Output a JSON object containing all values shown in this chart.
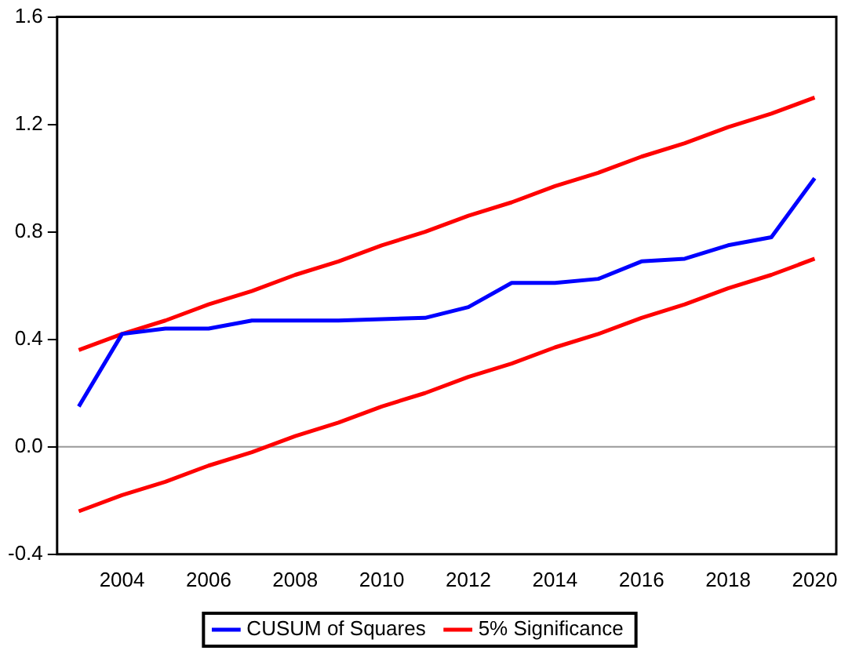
{
  "chart_data": {
    "type": "line",
    "x": [
      2003,
      2004,
      2005,
      2006,
      2007,
      2008,
      2009,
      2010,
      2011,
      2012,
      2013,
      2014,
      2015,
      2016,
      2017,
      2018,
      2019,
      2020
    ],
    "series": [
      {
        "name": "CUSUM of Squares",
        "color": "#0000ff",
        "values": [
          0.15,
          0.42,
          0.44,
          0.44,
          0.47,
          0.47,
          0.47,
          0.475,
          0.48,
          0.52,
          0.61,
          0.61,
          0.625,
          0.69,
          0.7,
          0.75,
          0.78,
          1.0
        ]
      },
      {
        "name": "5% Significance",
        "color": "#ff0000",
        "values": [
          0.36,
          0.42,
          0.47,
          0.53,
          0.58,
          0.64,
          0.69,
          0.75,
          0.8,
          0.86,
          0.91,
          0.97,
          1.02,
          1.08,
          1.13,
          1.19,
          1.24,
          1.3
        ]
      },
      {
        "color": "#ff0000",
        "values": [
          -0.24,
          -0.18,
          -0.13,
          -0.07,
          -0.02,
          0.04,
          0.09,
          0.15,
          0.2,
          0.26,
          0.31,
          0.37,
          0.42,
          0.48,
          0.53,
          0.59,
          0.64,
          0.7
        ]
      }
    ],
    "xlim": [
      2002.5,
      2020.5
    ],
    "xticks": [
      2004,
      2006,
      2008,
      2010,
      2012,
      2014,
      2016,
      2018,
      2020
    ],
    "ylim": [
      -0.4,
      1.6
    ],
    "yticks": [
      -0.4,
      {
        "value": 0,
        "label": "0.0"
      },
      0.4,
      0.8,
      1.2,
      1.6
    ],
    "ref_lines": [
      {
        "axis": "y",
        "value": 0,
        "color": "#999999"
      }
    ],
    "grid": false,
    "legend": "bottom",
    "marker": "none",
    "line_style": "solid"
  }
}
